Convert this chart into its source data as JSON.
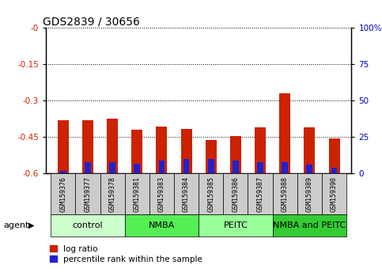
{
  "title": "GDS2839 / 30656",
  "samples": [
    "GSM159376",
    "GSM159377",
    "GSM159378",
    "GSM159381",
    "GSM159383",
    "GSM159384",
    "GSM159385",
    "GSM159386",
    "GSM159387",
    "GSM159388",
    "GSM159389",
    "GSM159390"
  ],
  "log_ratio": [
    -0.38,
    -0.38,
    -0.375,
    -0.42,
    -0.405,
    -0.415,
    -0.46,
    -0.445,
    -0.41,
    -0.27,
    -0.41,
    -0.455
  ],
  "pct_rank_right": [
    2,
    8,
    8,
    7,
    9,
    10,
    10,
    9,
    8,
    8,
    6,
    4
  ],
  "ylim_left": [
    -0.6,
    0.0
  ],
  "ylim_right": [
    0,
    100
  ],
  "yticks_left": [
    0.0,
    -0.15,
    -0.3,
    -0.45,
    -0.6
  ],
  "yticks_right": [
    0,
    25,
    50,
    75,
    100
  ],
  "ytick_labels_left": [
    "-0",
    "-0.15",
    "-0.3",
    "-0.45",
    "-0.6"
  ],
  "ytick_labels_right": [
    "100%",
    "75",
    "50",
    "25",
    "0"
  ],
  "groups": [
    {
      "label": "control",
      "start": 0,
      "end": 3,
      "color": "#ccffcc"
    },
    {
      "label": "NMBA",
      "start": 3,
      "end": 6,
      "color": "#55ee55"
    },
    {
      "label": "PEITC",
      "start": 6,
      "end": 9,
      "color": "#99ff99"
    },
    {
      "label": "NMBA and PEITC",
      "start": 9,
      "end": 12,
      "color": "#33cc33"
    }
  ],
  "bar_color_red": "#cc2200",
  "bar_color_blue": "#2222cc",
  "bar_width": 0.45,
  "blue_bar_width": 0.25,
  "tick_bg_color": "#cccccc",
  "agent_label": "agent",
  "legend_items": [
    {
      "label": "log ratio",
      "color": "#cc2200"
    },
    {
      "label": "percentile rank within the sample",
      "color": "#2222cc"
    }
  ],
  "left_axis_color": "#cc2200",
  "right_axis_color": "#0000cc",
  "title_fontsize": 10,
  "tick_fontsize": 7.5,
  "group_label_fontsize": 8,
  "sample_fontsize": 6
}
